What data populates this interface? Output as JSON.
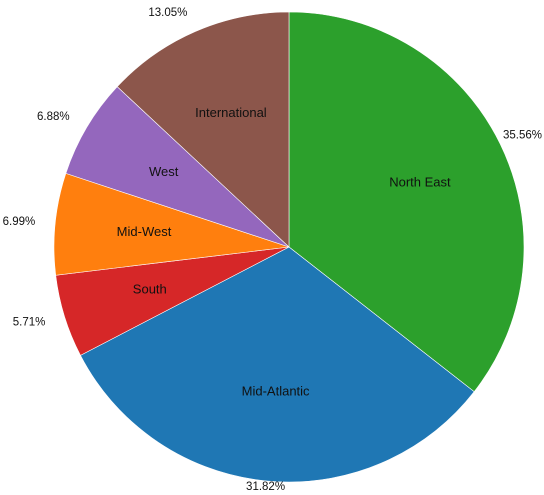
{
  "chart_data": {
    "type": "pie",
    "title": "",
    "start_angle_deg": 0,
    "direction": "clockwise",
    "categories": [
      "North East",
      "Mid-Atlantic",
      "South",
      "Mid-West",
      "West",
      "International"
    ],
    "values": [
      35.56,
      31.82,
      5.71,
      6.99,
      6.88,
      13.05
    ],
    "value_labels": [
      "35.56%",
      "31.82%",
      "5.71%",
      "6.99%",
      "6.88%",
      "13.05%"
    ],
    "colors": [
      "#2ca02c",
      "#1f77b4",
      "#d62728",
      "#ff7f0e",
      "#9467bd",
      "#8c564b"
    ],
    "legend": "none"
  }
}
